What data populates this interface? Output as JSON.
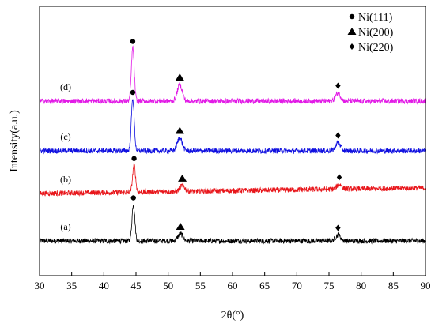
{
  "chart_data": {
    "type": "line",
    "xlabel": "2θ(°)",
    "ylabel": "Intensity(a.u.)",
    "xlim": [
      30,
      90
    ],
    "xticks": [
      "30",
      "35",
      "40",
      "45",
      "50",
      "55",
      "60",
      "65",
      "70",
      "75",
      "80",
      "85",
      "90"
    ],
    "yticks_shown": false,
    "grid": false,
    "legend_position": "top-right",
    "legend": [
      {
        "marker": "circle",
        "label": "Ni(111)"
      },
      {
        "marker": "triangle",
        "label": "Ni(200)"
      },
      {
        "marker": "diamond",
        "label": "Ni(220)"
      }
    ],
    "series": [
      {
        "name": "(a)",
        "color": "#000000",
        "baseline": 0.0,
        "slope": 0.0,
        "peaks": [
          {
            "x": 44.6,
            "height": 0.155,
            "marker": "circle"
          },
          {
            "x": 51.9,
            "height": 0.03,
            "marker": "triangle"
          },
          {
            "x": 76.4,
            "height": 0.025,
            "marker": "diamond"
          }
        ]
      },
      {
        "name": "(b)",
        "color": "#e8161b",
        "baseline": 0.2,
        "slope": 0.0004,
        "peaks": [
          {
            "x": 44.7,
            "height": 0.115,
            "marker": "circle"
          },
          {
            "x": 52.2,
            "height": 0.025,
            "marker": "triangle"
          },
          {
            "x": 76.6,
            "height": 0.02,
            "marker": "diamond"
          }
        ]
      },
      {
        "name": "(c)",
        "color": "#1010e0",
        "baseline": 0.38,
        "slope": 0.0,
        "peaks": [
          {
            "x": 44.5,
            "height": 0.22,
            "marker": "circle"
          },
          {
            "x": 51.8,
            "height": 0.055,
            "marker": "triangle"
          },
          {
            "x": 76.4,
            "height": 0.035,
            "marker": "diamond"
          }
        ]
      },
      {
        "name": "(d)",
        "color": "#e21ae6",
        "baseline": 0.59,
        "slope": 0.0,
        "peaks": [
          {
            "x": 44.5,
            "height": 0.225,
            "marker": "circle"
          },
          {
            "x": 51.8,
            "height": 0.07,
            "marker": "triangle"
          },
          {
            "x": 76.4,
            "height": 0.035,
            "marker": "diamond"
          }
        ]
      }
    ]
  }
}
